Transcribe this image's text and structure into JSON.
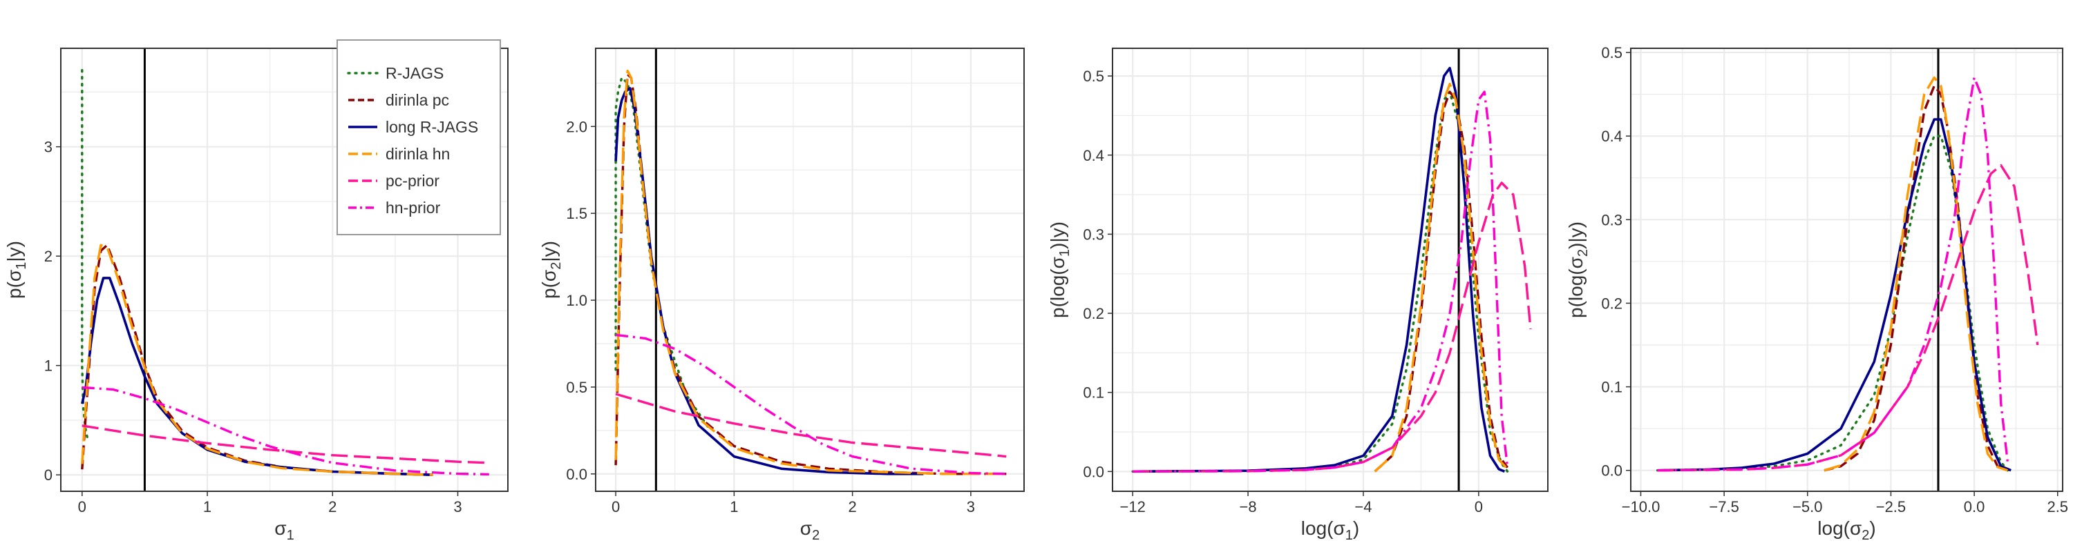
{
  "colors": {
    "r_jags": "#1b7a1b",
    "dirinla_pc": "#8b0000",
    "long_r_jags": "#00008b",
    "dirinla_hn": "#ff9900",
    "pc_prior": "#ff1493",
    "hn_prior": "#ff00cc",
    "vline": "#000000",
    "grid": "#ebebeb"
  },
  "legend": {
    "placement": "top-right of first panel",
    "entries": [
      "R-JAGS",
      "dirinla pc",
      "long R-JAGS",
      "dirinla hn",
      "pc-prior",
      "hn-prior"
    ]
  },
  "chart_data": [
    {
      "type": "line",
      "ylabel_text": "p(",
      "ylabel_sym": "σ",
      "ylabel_sub": "1",
      "ylabel_end": "|y)",
      "xlabel_text": "σ",
      "xlabel_sub": "1",
      "xlim": [
        -0.17,
        3.4
      ],
      "ylim": [
        -0.15,
        3.9
      ],
      "x_ticks": [
        0,
        1,
        2,
        3
      ],
      "x_tick_labels": [
        "0",
        "1",
        "2",
        "3"
      ],
      "y_ticks": [
        0,
        1,
        2,
        3
      ],
      "y_tick_labels": [
        "0",
        "1",
        "2",
        "3"
      ],
      "vline": 0.5,
      "series": [
        {
          "name": "R-JAGS",
          "style": "dotted",
          "x": [
            0,
            0,
            0.01,
            0.03,
            0.05
          ],
          "y": [
            3.7,
            1.0,
            0.6,
            0.4,
            0.3
          ]
        },
        {
          "name": "dirinla pc",
          "style": "dashed",
          "x": [
            0,
            0.05,
            0.1,
            0.15,
            0.2,
            0.3,
            0.4,
            0.5,
            0.6,
            0.8,
            1.0,
            1.3,
            1.6,
            2.0,
            2.5,
            2.8
          ],
          "y": [
            0.05,
            0.9,
            1.7,
            2.05,
            2.1,
            1.8,
            1.4,
            1.0,
            0.7,
            0.4,
            0.25,
            0.13,
            0.07,
            0.03,
            0.01,
            0.0
          ]
        },
        {
          "name": "long R-JAGS",
          "style": "solid",
          "x": [
            0,
            0.03,
            0.07,
            0.12,
            0.17,
            0.22,
            0.3,
            0.4,
            0.5,
            0.6,
            0.8,
            1.0,
            1.3,
            1.6,
            2.0,
            2.5,
            2.8
          ],
          "y": [
            0.65,
            0.8,
            1.2,
            1.6,
            1.8,
            1.8,
            1.55,
            1.2,
            0.9,
            0.65,
            0.38,
            0.23,
            0.12,
            0.07,
            0.03,
            0.01,
            0.0
          ]
        },
        {
          "name": "dirinla hn",
          "style": "longdash",
          "x": [
            0,
            0.05,
            0.1,
            0.15,
            0.2,
            0.3,
            0.4,
            0.5,
            0.6,
            0.8,
            1.0,
            1.3,
            1.6,
            2.0,
            2.5,
            2.8
          ],
          "y": [
            0.1,
            1.0,
            1.8,
            2.1,
            2.08,
            1.75,
            1.35,
            0.98,
            0.68,
            0.38,
            0.24,
            0.12,
            0.06,
            0.03,
            0.01,
            0.0
          ]
        },
        {
          "name": "pc-prior",
          "style": "longdash",
          "x": [
            0,
            0.5,
            1.0,
            1.5,
            2.0,
            2.5,
            3.0,
            3.25
          ],
          "y": [
            0.45,
            0.36,
            0.29,
            0.23,
            0.18,
            0.15,
            0.12,
            0.11
          ]
        },
        {
          "name": "hn-prior",
          "style": "dotdash",
          "x": [
            0,
            0.25,
            0.5,
            0.75,
            1.0,
            1.25,
            1.5,
            1.75,
            2.0,
            2.5,
            3.0,
            3.25
          ],
          "y": [
            0.8,
            0.78,
            0.7,
            0.6,
            0.48,
            0.36,
            0.26,
            0.18,
            0.11,
            0.04,
            0.01,
            0.005
          ]
        }
      ]
    },
    {
      "type": "line",
      "ylabel_text": "p(",
      "ylabel_sym": "σ",
      "ylabel_sub": "2",
      "ylabel_end": "|y)",
      "xlabel_text": "σ",
      "xlabel_sub": "2",
      "xlim": [
        -0.17,
        3.45
      ],
      "ylim": [
        -0.1,
        2.45
      ],
      "x_ticks": [
        0,
        1,
        2,
        3
      ],
      "x_tick_labels": [
        "0",
        "1",
        "2",
        "3"
      ],
      "y_ticks": [
        0,
        0.5,
        1.0,
        1.5,
        2.0
      ],
      "y_tick_labels": [
        "0.0",
        "0.5",
        "1.0",
        "1.5",
        "2.0"
      ],
      "vline": 0.34,
      "series": [
        {
          "name": "R-JAGS",
          "style": "dotted",
          "x": [
            0,
            0.0,
            0.02,
            0.05,
            0.1,
            0.15,
            0.2,
            0.3,
            0.4,
            0.6,
            0.8
          ],
          "y": [
            0.6,
            2.1,
            2.2,
            2.28,
            2.25,
            2.1,
            1.8,
            1.2,
            0.85,
            0.45,
            0.25
          ]
        },
        {
          "name": "dirinla pc",
          "style": "dashed",
          "x": [
            0,
            0.03,
            0.07,
            0.1,
            0.13,
            0.17,
            0.22,
            0.3,
            0.4,
            0.5,
            0.7,
            1.0,
            1.4,
            1.8,
            2.3,
            2.8,
            3.3
          ],
          "y": [
            0.05,
            1.0,
            2.0,
            2.3,
            2.28,
            2.1,
            1.75,
            1.25,
            0.85,
            0.6,
            0.33,
            0.16,
            0.07,
            0.03,
            0.01,
            0.0,
            0.0
          ]
        },
        {
          "name": "long R-JAGS",
          "style": "solid",
          "x": [
            0,
            0.02,
            0.05,
            0.08,
            0.12,
            0.16,
            0.22,
            0.3,
            0.4,
            0.5,
            0.7,
            1.0,
            1.4,
            1.8,
            2.3,
            2.6
          ],
          "y": [
            1.8,
            2.05,
            2.15,
            2.2,
            2.22,
            2.1,
            1.75,
            1.25,
            0.85,
            0.58,
            0.28,
            0.1,
            0.03,
            0.01,
            0.0,
            0.0
          ]
        },
        {
          "name": "dirinla hn",
          "style": "longdash",
          "x": [
            0,
            0.03,
            0.07,
            0.1,
            0.13,
            0.17,
            0.22,
            0.3,
            0.4,
            0.5,
            0.7,
            1.0,
            1.4,
            1.8,
            2.3,
            2.8,
            3.3
          ],
          "y": [
            0.08,
            1.1,
            2.05,
            2.32,
            2.28,
            2.08,
            1.72,
            1.22,
            0.83,
            0.58,
            0.32,
            0.15,
            0.06,
            0.02,
            0.01,
            0.0,
            0.0
          ]
        },
        {
          "name": "pc-prior",
          "style": "longdash",
          "x": [
            0,
            0.5,
            1.0,
            1.5,
            2.0,
            2.5,
            3.0,
            3.3
          ],
          "y": [
            0.46,
            0.36,
            0.29,
            0.23,
            0.18,
            0.15,
            0.12,
            0.1
          ]
        },
        {
          "name": "hn-prior",
          "style": "dotdash",
          "x": [
            0,
            0.25,
            0.5,
            0.75,
            1.0,
            1.25,
            1.5,
            1.75,
            2.0,
            2.5,
            3.0,
            3.3
          ],
          "y": [
            0.8,
            0.78,
            0.72,
            0.62,
            0.5,
            0.38,
            0.27,
            0.17,
            0.1,
            0.03,
            0.005,
            0.0
          ]
        }
      ]
    },
    {
      "type": "line",
      "ylabel_text": "p(log(",
      "ylabel_sym": "σ",
      "ylabel_sub": "1",
      "ylabel_end": ")|y)",
      "xlabel_text": "log(σ",
      "xlabel_sub": "1",
      "xlabel_end": ")",
      "xlim": [
        -12.7,
        2.4
      ],
      "ylim": [
        -0.025,
        0.535
      ],
      "x_ticks": [
        -12,
        -8,
        -4,
        0
      ],
      "x_tick_labels": [
        "−12",
        "−8",
        "−4",
        "0"
      ],
      "y_ticks": [
        0,
        0.1,
        0.2,
        0.3,
        0.4,
        0.5
      ],
      "y_tick_labels": [
        "0.0",
        "0.1",
        "0.2",
        "0.3",
        "0.4",
        "0.5"
      ],
      "vline": -0.69,
      "series": [
        {
          "name": "R-JAGS",
          "style": "dotted",
          "x": [
            -12,
            -8,
            -6,
            -5,
            -4,
            -3,
            -2.5,
            -2,
            -1.5,
            -1.2,
            -1.0,
            -0.7,
            -0.4,
            0,
            0.4,
            0.8,
            1.0
          ],
          "y": [
            0,
            0.001,
            0.003,
            0.006,
            0.015,
            0.06,
            0.13,
            0.25,
            0.4,
            0.47,
            0.48,
            0.44,
            0.33,
            0.17,
            0.05,
            0.01,
            0.0
          ]
        },
        {
          "name": "dirinla pc",
          "style": "dashed",
          "x": [
            -3.6,
            -3,
            -2.5,
            -2,
            -1.5,
            -1.2,
            -1.0,
            -0.8,
            -0.5,
            -0.2,
            0.1,
            0.4,
            0.7,
            1.0
          ],
          "y": [
            0.0,
            0.02,
            0.07,
            0.2,
            0.38,
            0.46,
            0.48,
            0.47,
            0.41,
            0.3,
            0.17,
            0.07,
            0.02,
            0.005
          ]
        },
        {
          "name": "long R-JAGS",
          "style": "solid",
          "x": [
            -12,
            -8,
            -6,
            -5,
            -4,
            -3,
            -2.5,
            -2,
            -1.5,
            -1.2,
            -1.0,
            -0.8,
            -0.5,
            -0.2,
            0.1,
            0.4,
            0.7,
            0.9
          ],
          "y": [
            0,
            0.001,
            0.004,
            0.008,
            0.02,
            0.07,
            0.16,
            0.3,
            0.45,
            0.5,
            0.51,
            0.48,
            0.36,
            0.2,
            0.08,
            0.02,
            0.003,
            0.0
          ]
        },
        {
          "name": "dirinla hn",
          "style": "longdash",
          "x": [
            -3.6,
            -3,
            -2.5,
            -2,
            -1.5,
            -1.2,
            -1.0,
            -0.8,
            -0.5,
            -0.2,
            0.1,
            0.4,
            0.7,
            1.0
          ],
          "y": [
            0.0,
            0.02,
            0.08,
            0.21,
            0.39,
            0.47,
            0.49,
            0.47,
            0.4,
            0.28,
            0.15,
            0.06,
            0.015,
            0.003
          ]
        },
        {
          "name": "pc-prior",
          "style": "longdash",
          "x": [
            -12,
            -8,
            -6,
            -5,
            -4,
            -3,
            -2,
            -1.5,
            -1,
            -0.5,
            0,
            0.5,
            0.8,
            1.2,
            1.6,
            1.8
          ],
          "y": [
            0,
            0.0005,
            0.002,
            0.005,
            0.012,
            0.03,
            0.07,
            0.1,
            0.15,
            0.22,
            0.29,
            0.35,
            0.365,
            0.35,
            0.26,
            0.18
          ]
        },
        {
          "name": "hn-prior",
          "style": "dotdash",
          "x": [
            -12,
            -8,
            -6,
            -5,
            -4,
            -3,
            -2,
            -1.5,
            -1,
            -0.6,
            -0.3,
            0,
            0.2,
            0.4,
            0.6,
            0.8,
            1.0
          ],
          "y": [
            0,
            0.0005,
            0.002,
            0.005,
            0.012,
            0.03,
            0.08,
            0.13,
            0.2,
            0.29,
            0.39,
            0.47,
            0.48,
            0.42,
            0.25,
            0.07,
            0.005
          ]
        }
      ]
    },
    {
      "type": "line",
      "ylabel_text": "p(log(",
      "ylabel_sym": "σ",
      "ylabel_sub": "2",
      "ylabel_end": ")|y)",
      "xlabel_text": "log(σ",
      "xlabel_sub": "2",
      "xlabel_end": ")",
      "xlim": [
        -10.3,
        2.65
      ],
      "ylim": [
        -0.025,
        0.505
      ],
      "x_ticks": [
        -10,
        -7.5,
        -5,
        -2.5,
        0,
        2.5
      ],
      "x_tick_labels": [
        "−10.0",
        "−7.5",
        "−5.0",
        "−2.5",
        "0.0",
        "2.5"
      ],
      "y_ticks": [
        0,
        0.1,
        0.2,
        0.3,
        0.4,
        0.5
      ],
      "y_tick_labels": [
        "0.0",
        "0.1",
        "0.2",
        "0.3",
        "0.4",
        "0.5"
      ],
      "vline": -1.08,
      "series": [
        {
          "name": "R-JAGS",
          "style": "dotted",
          "x": [
            -9.5,
            -7,
            -6,
            -5,
            -4,
            -3,
            -2.5,
            -2,
            -1.5,
            -1.2,
            -1.0,
            -0.7,
            -0.4,
            0,
            0.4,
            0.8,
            1.0
          ],
          "y": [
            0,
            0.002,
            0.005,
            0.012,
            0.03,
            0.09,
            0.17,
            0.28,
            0.37,
            0.4,
            0.4,
            0.36,
            0.28,
            0.15,
            0.05,
            0.01,
            0.0
          ]
        },
        {
          "name": "dirinla pc",
          "style": "dashed",
          "x": [
            -4.5,
            -4,
            -3.5,
            -3,
            -2.5,
            -2,
            -1.5,
            -1.2,
            -1.0,
            -0.8,
            -0.5,
            -0.2,
            0.1,
            0.4,
            0.7,
            1.0
          ],
          "y": [
            0.0,
            0.005,
            0.02,
            0.06,
            0.15,
            0.3,
            0.43,
            0.46,
            0.45,
            0.41,
            0.32,
            0.2,
            0.09,
            0.03,
            0.005,
            0.0
          ]
        },
        {
          "name": "long R-JAGS",
          "style": "solid",
          "x": [
            -9.5,
            -8,
            -7,
            -6,
            -5,
            -4,
            -3,
            -2.5,
            -2,
            -1.5,
            -1.2,
            -1.0,
            -0.7,
            -0.4,
            0,
            0.4,
            0.8,
            1.1
          ],
          "y": [
            0,
            0.001,
            0.003,
            0.008,
            0.02,
            0.05,
            0.13,
            0.21,
            0.31,
            0.39,
            0.42,
            0.42,
            0.37,
            0.28,
            0.13,
            0.04,
            0.005,
            0.0
          ]
        },
        {
          "name": "dirinla hn",
          "style": "longdash",
          "x": [
            -4.5,
            -4,
            -3.5,
            -3,
            -2.5,
            -2,
            -1.5,
            -1.2,
            -1.0,
            -0.8,
            -0.5,
            -0.2,
            0.1,
            0.4,
            0.7,
            1.0
          ],
          "y": [
            0.0,
            0.006,
            0.025,
            0.07,
            0.17,
            0.33,
            0.45,
            0.47,
            0.46,
            0.41,
            0.31,
            0.18,
            0.08,
            0.02,
            0.004,
            0.0
          ]
        },
        {
          "name": "pc-prior",
          "style": "longdash",
          "x": [
            -9.5,
            -7,
            -6,
            -5,
            -4,
            -3,
            -2,
            -1.5,
            -1,
            -0.5,
            0,
            0.5,
            0.8,
            1.2,
            1.6,
            1.9
          ],
          "y": [
            0,
            0.001,
            0.003,
            0.007,
            0.018,
            0.045,
            0.1,
            0.14,
            0.19,
            0.25,
            0.31,
            0.355,
            0.365,
            0.34,
            0.24,
            0.15
          ]
        },
        {
          "name": "hn-prior",
          "style": "dotdash",
          "x": [
            -9.5,
            -7,
            -6,
            -5,
            -4,
            -3,
            -2,
            -1.5,
            -1,
            -0.6,
            -0.3,
            0,
            0.2,
            0.4,
            0.6,
            0.8,
            1.0
          ],
          "y": [
            0,
            0.001,
            0.003,
            0.007,
            0.018,
            0.045,
            0.1,
            0.15,
            0.22,
            0.3,
            0.4,
            0.47,
            0.45,
            0.38,
            0.24,
            0.08,
            0.01
          ]
        }
      ]
    }
  ]
}
